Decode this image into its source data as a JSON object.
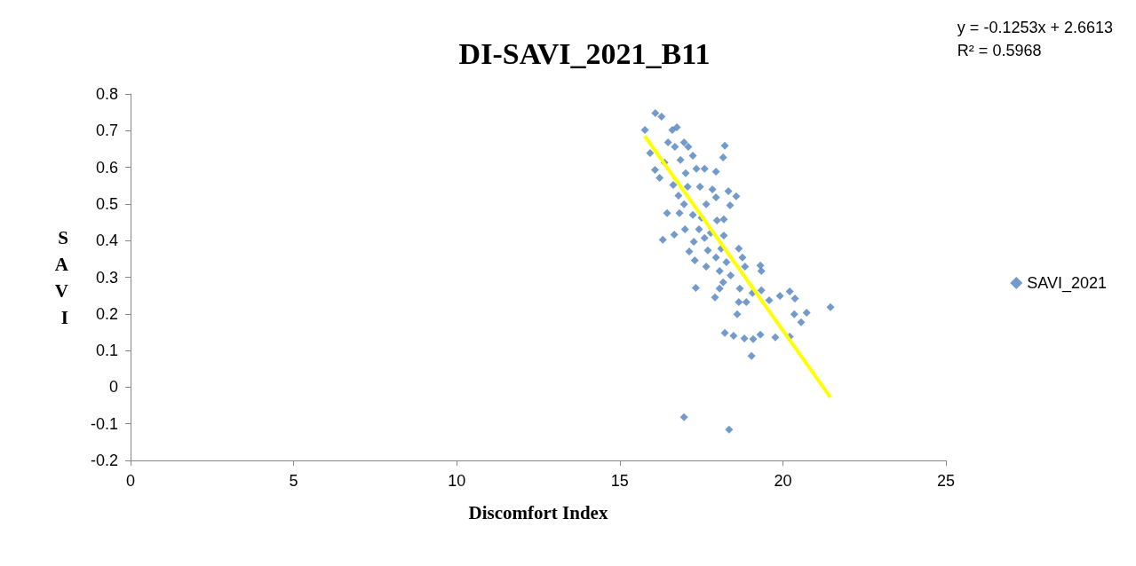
{
  "chart_data": {
    "type": "scatter",
    "title": "DI-SAVI_2021_B11",
    "xlabel": "Discomfort Index",
    "ylabel": "SAVI",
    "annotations": [
      "y = -0.1253x + 2.6613",
      "R² = 0.5968"
    ],
    "xlim": [
      0,
      25
    ],
    "xticks": [
      0,
      5,
      10,
      15,
      20,
      25
    ],
    "ylim": [
      -0.2,
      0.8
    ],
    "yticks": [
      -0.2,
      -0.1,
      0,
      0.1,
      0.2,
      0.3,
      0.4,
      0.5,
      0.6,
      0.7,
      0.8
    ],
    "grid": false,
    "legend": "right",
    "marker": "diamond",
    "series": [
      {
        "name": "SAVI_2021",
        "color": "#4f81bd",
        "x": [
          15.77,
          16.09,
          16.28,
          15.93,
          16.08,
          16.22,
          16.37,
          16.48,
          16.61,
          16.75,
          16.69,
          16.86,
          16.97,
          17.1,
          17.24,
          17.35,
          17.02,
          16.64,
          16.8,
          16.97,
          16.83,
          16.45,
          16.32,
          16.67,
          17.0,
          17.08,
          17.46,
          17.6,
          17.84,
          17.95,
          18.22,
          18.17,
          17.95,
          18.33,
          18.38,
          18.57,
          17.65,
          17.51,
          17.24,
          17.43,
          17.27,
          17.6,
          17.79,
          17.98,
          18.19,
          18.19,
          17.7,
          17.13,
          17.3,
          17.65,
          17.95,
          18.11,
          18.27,
          18.06,
          18.17,
          17.92,
          17.33,
          18.06,
          18.4,
          18.65,
          18.76,
          18.84,
          18.68,
          18.65,
          18.88,
          19.07,
          19.34,
          19.31,
          19.34,
          19.58,
          19.91,
          20.21,
          20.37,
          20.35,
          20.56,
          20.73,
          21.46,
          18.6,
          18.22,
          18.49,
          18.82,
          19.09,
          19.31,
          19.77,
          20.21,
          19.04,
          16.97,
          18.35
        ],
        "values": [
          0.702,
          0.748,
          0.738,
          0.639,
          0.593,
          0.571,
          0.613,
          0.668,
          0.702,
          0.709,
          0.656,
          0.62,
          0.668,
          0.656,
          0.632,
          0.596,
          0.584,
          0.552,
          0.523,
          0.499,
          0.475,
          0.475,
          0.402,
          0.416,
          0.431,
          0.547,
          0.547,
          0.596,
          0.54,
          0.588,
          0.659,
          0.627,
          0.518,
          0.535,
          0.496,
          0.521,
          0.499,
          0.462,
          0.47,
          0.431,
          0.397,
          0.407,
          0.421,
          0.455,
          0.458,
          0.414,
          0.373,
          0.37,
          0.346,
          0.329,
          0.354,
          0.378,
          0.341,
          0.317,
          0.286,
          0.245,
          0.271,
          0.269,
          0.305,
          0.378,
          0.354,
          0.329,
          0.269,
          0.232,
          0.232,
          0.257,
          0.264,
          0.332,
          0.317,
          0.237,
          0.249,
          0.261,
          0.242,
          0.199,
          0.177,
          0.203,
          0.218,
          0.199,
          0.148,
          0.14,
          0.133,
          0.131,
          0.143,
          0.136,
          0.138,
          0.085,
          -0.082,
          -0.116
        ]
      },
      {
        "type": "line",
        "marker": "none",
        "color": "#ffff00",
        "x": [
          15.77,
          21.46
        ],
        "values": [
          0.685,
          -0.028
        ]
      }
    ]
  }
}
